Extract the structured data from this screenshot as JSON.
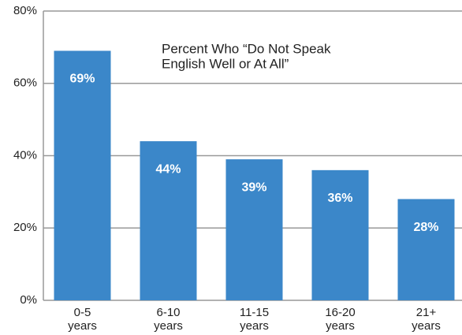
{
  "chart_data": {
    "type": "bar",
    "title": [
      "Percent Who “Do Not Speak",
      "English Well or At All”"
    ],
    "categories": [
      "0-5 years",
      "6-10 years",
      "11-15 years",
      "16-20 years",
      "21+ years"
    ],
    "values": [
      69,
      44,
      39,
      36,
      28
    ],
    "value_labels": [
      "69%",
      "44%",
      "39%",
      "36%",
      "28%"
    ],
    "color": "#3b87c9",
    "ylim": [
      0,
      80
    ],
    "yticks": [
      {
        "value": 0,
        "label": "0%"
      },
      {
        "value": 20,
        "label": "20%"
      },
      {
        "value": 40,
        "label": "40%"
      },
      {
        "value": 60,
        "label": "60%"
      },
      {
        "value": 80,
        "label": "80%"
      }
    ],
    "grid": true
  }
}
